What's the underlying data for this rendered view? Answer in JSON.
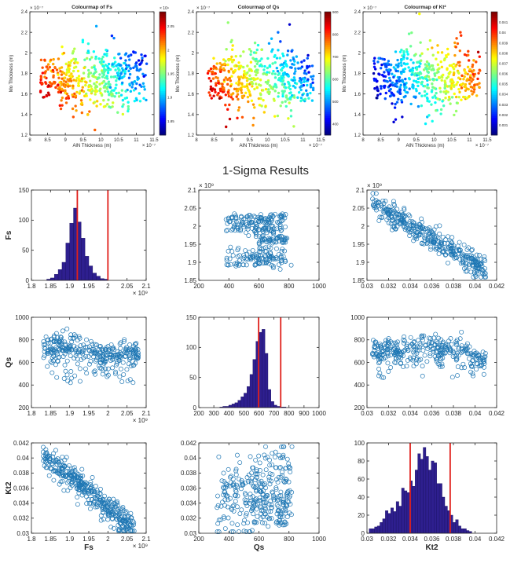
{
  "figure": {
    "title": "1-Sigma Results",
    "colors": {
      "marker": "#1f77b4",
      "bar": "#2e1f8f",
      "vline": "#e0201b",
      "axis": "#262626"
    }
  },
  "chart_data": [
    {
      "type": "scatter",
      "id": "cmap_fs",
      "title": "Colourmap of Fs",
      "xlabel": "AlN Thickness (m)",
      "ylabel": "Mo Thickness (m)",
      "xlim": [
        8,
        11.5
      ],
      "ylim": [
        1.2,
        2.4
      ],
      "xticks": [
        "8",
        "8.5",
        "9",
        "9.5",
        "10",
        "10.5",
        "11",
        "11.5"
      ],
      "yticks": [
        "1.2",
        "1.4",
        "1.6",
        "1.8",
        "2",
        "2.2",
        "2.4"
      ],
      "xexp": "× 10⁻⁷",
      "yexp": "× 10⁻⁷",
      "colorbar": {
        "min": 1.82,
        "max": 2.08,
        "ticks": [
          "1.85",
          "1.9",
          "1.95",
          "2",
          "2.05"
        ],
        "exp": "× 10⁹",
        "reversed": true
      },
      "point_count": 520
    },
    {
      "type": "scatter",
      "id": "cmap_qs",
      "title": "Colourmap of Qs",
      "xlabel": "AlN Thickness (m)",
      "ylabel": "Mo Thickness (m)",
      "xlim": [
        8,
        11.5
      ],
      "ylim": [
        1.2,
        2.4
      ],
      "xticks": [
        "8",
        "8.5",
        "9",
        "9.5",
        "10",
        "10.5",
        "11",
        "11.5"
      ],
      "yticks": [
        "1.2",
        "1.4",
        "1.6",
        "1.8",
        "2",
        "2.2",
        "2.4"
      ],
      "xexp": "× 10⁻⁷",
      "yexp": "× 10⁻⁷",
      "colorbar": {
        "min": 350,
        "max": 900,
        "ticks": [
          "400",
          "500",
          "600",
          "700",
          "800",
          "900"
        ],
        "exp": "",
        "reversed": true
      },
      "point_count": 520
    },
    {
      "type": "scatter",
      "id": "cmap_kt2",
      "title": "Colourmap of Kt²",
      "xlabel": "AlN Thickness (m)",
      "ylabel": "Mo Thickness (m)",
      "xlim": [
        8,
        11.5
      ],
      "ylim": [
        1.2,
        2.4
      ],
      "xticks": [
        "8",
        "8.5",
        "9",
        "9.5",
        "10",
        "10.5",
        "11",
        "11.5"
      ],
      "yticks": [
        "1.2",
        "1.4",
        "1.6",
        "1.8",
        "2",
        "2.2",
        "2.4"
      ],
      "xexp": "× 10⁻⁷",
      "yexp": "× 10⁻⁷",
      "colorbar": {
        "min": 0.03,
        "max": 0.042,
        "ticks": [
          "0.031",
          "0.032",
          "0.033",
          "0.034",
          "0.035",
          "0.036",
          "0.037",
          "0.038",
          "0.039",
          "0.04",
          "0.041"
        ],
        "exp": "",
        "reversed": false
      },
      "point_count": 520
    },
    {
      "type": "bar",
      "id": "hist_fs",
      "xlim": [
        1.8,
        2.1
      ],
      "ylim": [
        0,
        150
      ],
      "xticks": [
        "1.8",
        "1.85",
        "1.9",
        "1.95",
        "2",
        "2.05",
        "2.1"
      ],
      "yticks": [
        "0",
        "50",
        "100",
        "150"
      ],
      "xexp": "× 10⁹",
      "yexp": "",
      "ylabel": "Fs",
      "xlabel": "",
      "bin_start": 1.84,
      "bin_width": 0.01,
      "values": [
        2,
        4,
        10,
        18,
        30,
        62,
        95,
        120,
        97,
        70,
        40,
        24,
        12,
        7,
        3,
        2
      ],
      "sigma_lines": [
        1.92,
        2.0
      ]
    },
    {
      "type": "scatter",
      "id": "qs_vs_fs",
      "xlim": [
        200,
        1000
      ],
      "ylim": [
        1.83,
        2.1
      ],
      "xticks": [
        "200",
        "400",
        "600",
        "800",
        "1000"
      ],
      "yticks": [
        "1.85",
        "1.9",
        "1.95",
        "2",
        "2.05",
        "2.1"
      ],
      "xexp": "",
      "yexp": "× 10⁹",
      "xlabel": "",
      "ylabel": "",
      "point_count": 320
    },
    {
      "type": "scatter",
      "id": "kt2_vs_fs",
      "xlim": [
        0.03,
        0.042
      ],
      "ylim": [
        1.83,
        2.1
      ],
      "xticks": [
        "0.03",
        "0.032",
        "0.034",
        "0.036",
        "0.038",
        "0.04",
        "0.042"
      ],
      "yticks": [
        "1.85",
        "1.9",
        "1.95",
        "2",
        "2.05",
        "2.1"
      ],
      "xexp": "",
      "yexp": "× 10⁹",
      "xlabel": "",
      "ylabel": "",
      "point_count": 380
    },
    {
      "type": "scatter",
      "id": "fs_vs_qs",
      "xlim": [
        1.8,
        2.1
      ],
      "ylim": [
        200,
        1000
      ],
      "xticks": [
        "1.8",
        "1.85",
        "1.9",
        "1.95",
        "2",
        "2.05",
        "2.1"
      ],
      "yticks": [
        "200",
        "400",
        "600",
        "800",
        "1000"
      ],
      "xexp": "× 10⁹",
      "yexp": "",
      "xlabel": "",
      "ylabel": "Qs",
      "point_count": 330
    },
    {
      "type": "bar",
      "id": "hist_qs",
      "xlim": [
        200,
        1000
      ],
      "ylim": [
        0,
        150
      ],
      "xticks": [
        "200",
        "300",
        "400",
        "500",
        "600",
        "700",
        "800",
        "900",
        "1000"
      ],
      "yticks": [
        "0",
        "50",
        "100",
        "150"
      ],
      "xexp": "",
      "yexp": "",
      "xlabel": "",
      "ylabel": "",
      "bin_start": 340,
      "bin_width": 20,
      "values": [
        1,
        2,
        2,
        4,
        6,
        8,
        12,
        18,
        24,
        35,
        55,
        80,
        110,
        125,
        130,
        90,
        30,
        10,
        4,
        2,
        1,
        1
      ],
      "sigma_lines": [
        598,
        745
      ]
    },
    {
      "type": "scatter",
      "id": "kt2_vs_qs",
      "xlim": [
        0.03,
        0.042
      ],
      "ylim": [
        200,
        1000
      ],
      "xticks": [
        "0.03",
        "0.032",
        "0.034",
        "0.036",
        "0.038",
        "0.04",
        "0.042"
      ],
      "yticks": [
        "200",
        "400",
        "600",
        "800",
        "1000"
      ],
      "xexp": "",
      "yexp": "",
      "xlabel": "",
      "ylabel": "",
      "point_count": 330
    },
    {
      "type": "scatter",
      "id": "fs_vs_kt2",
      "xlim": [
        1.8,
        2.1
      ],
      "ylim": [
        0.03,
        0.042
      ],
      "xticks": [
        "1.8",
        "1.85",
        "1.9",
        "1.95",
        "2",
        "2.05",
        "2.1"
      ],
      "yticks": [
        "0.03",
        "0.032",
        "0.034",
        "0.036",
        "0.038",
        "0.04",
        "0.042"
      ],
      "xexp": "× 10⁹",
      "yexp": "",
      "xlabel": "Fs",
      "ylabel": "Kt2",
      "point_count": 380
    },
    {
      "type": "scatter",
      "id": "qs_vs_kt2",
      "xlim": [
        200,
        1000
      ],
      "ylim": [
        0.03,
        0.042
      ],
      "xticks": [
        "200",
        "400",
        "600",
        "800",
        "1000"
      ],
      "yticks": [
        "0.03",
        "0.032",
        "0.034",
        "0.036",
        "0.038",
        "0.04",
        "0.042"
      ],
      "xexp": "",
      "yexp": "",
      "xlabel": "Qs",
      "ylabel": "",
      "point_count": 320
    },
    {
      "type": "bar",
      "id": "hist_kt2",
      "xlim": [
        0.03,
        0.042
      ],
      "ylim": [
        0,
        100
      ],
      "xticks": [
        "0.03",
        "0.032",
        "0.034",
        "0.036",
        "0.038",
        "0.04",
        "0.042"
      ],
      "yticks": [
        "0",
        "20",
        "40",
        "60",
        "80",
        "100"
      ],
      "xexp": "",
      "yexp": "",
      "xlabel": "Kt2",
      "ylabel": "",
      "bin_start": 0.0302,
      "bin_width": 0.00025,
      "values": [
        5,
        5,
        7,
        8,
        12,
        16,
        25,
        22,
        28,
        24,
        35,
        30,
        50,
        47,
        45,
        58,
        52,
        70,
        88,
        82,
        95,
        85,
        70,
        80,
        78,
        55,
        55,
        40,
        30,
        25,
        20,
        12,
        15,
        8,
        5,
        5,
        3,
        2
      ],
      "sigma_lines": [
        0.034,
        0.0377
      ]
    }
  ]
}
